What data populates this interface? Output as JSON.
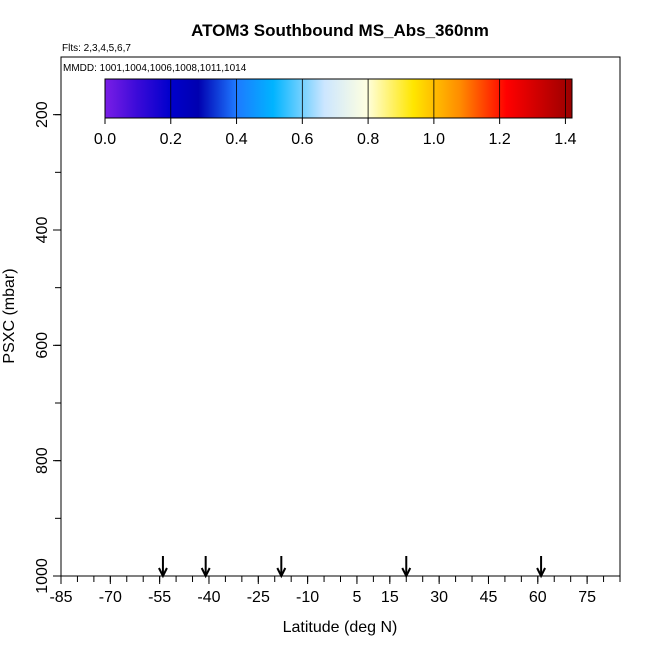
{
  "chart_data": {
    "type": "heatmap",
    "title": "ATOM3 Southbound MS_Abs_360nm",
    "flights_note": "Flts: 2,3,4,5,6,7",
    "mmdd_note": "MMDD: 1001,1004,1006,1008,1011,1014",
    "xlabel": "Latitude (deg N)",
    "ylabel": "PSXC (mbar)",
    "xlim": [
      -85,
      85
    ],
    "ylim": [
      1000,
      100
    ],
    "x_ticks": [
      -85,
      -70,
      -55,
      -40,
      -25,
      -10,
      5,
      15,
      30,
      45,
      60,
      75
    ],
    "y_ticks": [
      200,
      400,
      600,
      800,
      1000
    ],
    "colorbar": {
      "ticks": [
        0.0,
        0.2,
        0.4,
        0.6,
        0.8,
        1.0,
        1.2,
        1.4
      ],
      "tick_labels": [
        "0.0",
        "0.2",
        "0.4",
        "0.6",
        "0.8",
        "1.0",
        "1.2",
        "1.4"
      ],
      "range": [
        0.0,
        1.42
      ],
      "colors": [
        "#7a1ee6",
        "#0000cc",
        "#0000aa",
        "#1e78ff",
        "#00b4ff",
        "#cce6ff",
        "#ffffe0",
        "#ffe600",
        "#ff8c00",
        "#ff0000",
        "#aa0000"
      ]
    },
    "arrow_latitudes": [
      -54,
      -41,
      -18,
      20,
      61
    ],
    "grid": false,
    "legend": "colorbar-top"
  }
}
